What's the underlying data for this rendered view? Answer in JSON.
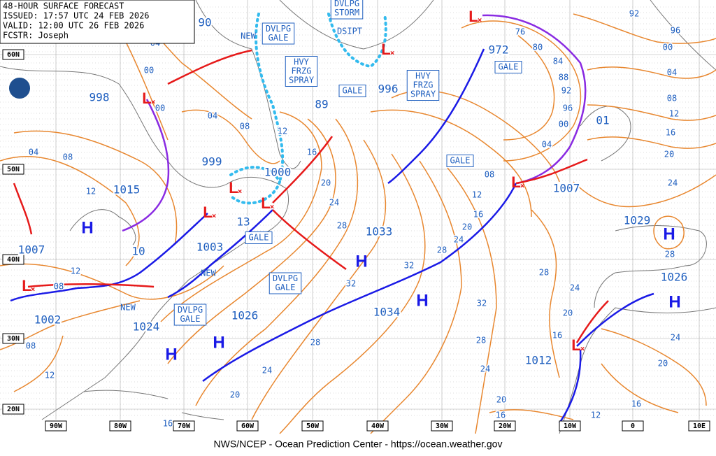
{
  "header": {
    "lines": [
      "48-HOUR SURFACE FORECAST",
      "ISSUED: 17:57 UTC 24 FEB 2026",
      "VALID: 12:00 UTC 26 FEB 2026",
      "FCSTR: Joseph"
    ]
  },
  "latitude_labels": [
    "60N",
    "50N",
    "40N",
    "30N",
    "20N"
  ],
  "longitude_labels": [
    "90W",
    "80W",
    "70W",
    "60W",
    "50W",
    "40W",
    "30W",
    "20W",
    "10W",
    "0",
    "10E"
  ],
  "pressure_values": [
    "90",
    "998",
    "1015",
    "1007",
    "1002",
    "1024",
    "1026",
    "999",
    "1000",
    "1003",
    "10",
    "13",
    "89",
    "996",
    "972",
    "1033",
    "1034",
    "1029",
    "1026",
    "1007",
    "1012",
    "01"
  ],
  "highs": [
    "H",
    "H",
    "H",
    "H",
    "H",
    "H",
    "H"
  ],
  "lows": [
    "L",
    "L",
    "L",
    "L",
    "L",
    "L",
    "L",
    "L",
    "L"
  ],
  "isobar_labels": [
    "04",
    "00",
    "00",
    "04",
    "08",
    "12",
    "16",
    "20",
    "24",
    "28",
    "32",
    "28",
    "24",
    "20",
    "16",
    "04",
    "08",
    "12",
    "08",
    "12",
    "08",
    "12",
    "76",
    "80",
    "84",
    "88",
    "92",
    "96",
    "00",
    "04",
    "08",
    "12",
    "16",
    "20",
    "24",
    "28",
    "32",
    "32",
    "28",
    "24",
    "20",
    "16",
    "12",
    "16",
    "20",
    "24",
    "28",
    "24",
    "20",
    "16",
    "28",
    "24",
    "20",
    "16",
    "12",
    "08",
    "04",
    "00",
    "96",
    "92"
  ],
  "warnings": [
    {
      "lines": [
        "NEW"
      ]
    },
    {
      "lines": [
        "DVLPG",
        "GALE"
      ]
    },
    {
      "lines": [
        "DVLPG",
        "STORM"
      ]
    },
    {
      "lines": [
        "DSIPT"
      ]
    },
    {
      "lines": [
        "HVY",
        "FRZG",
        "SPRAY"
      ]
    },
    {
      "lines": [
        "GALE"
      ]
    },
    {
      "lines": [
        "HVY",
        "FRZG",
        "SPRAY"
      ]
    },
    {
      "lines": [
        "GALE"
      ]
    },
    {
      "lines": [
        "GALE"
      ]
    },
    {
      "lines": [
        "GALE"
      ]
    },
    {
      "lines": [
        "NEW"
      ]
    },
    {
      "lines": [
        "DVLPG",
        "GALE"
      ]
    },
    {
      "lines": [
        "NEW"
      ]
    },
    {
      "lines": [
        "DVLPG",
        "GALE"
      ]
    }
  ],
  "footer": "NWS/NCEP - Ocean Prediction Center - https://ocean.weather.gov"
}
